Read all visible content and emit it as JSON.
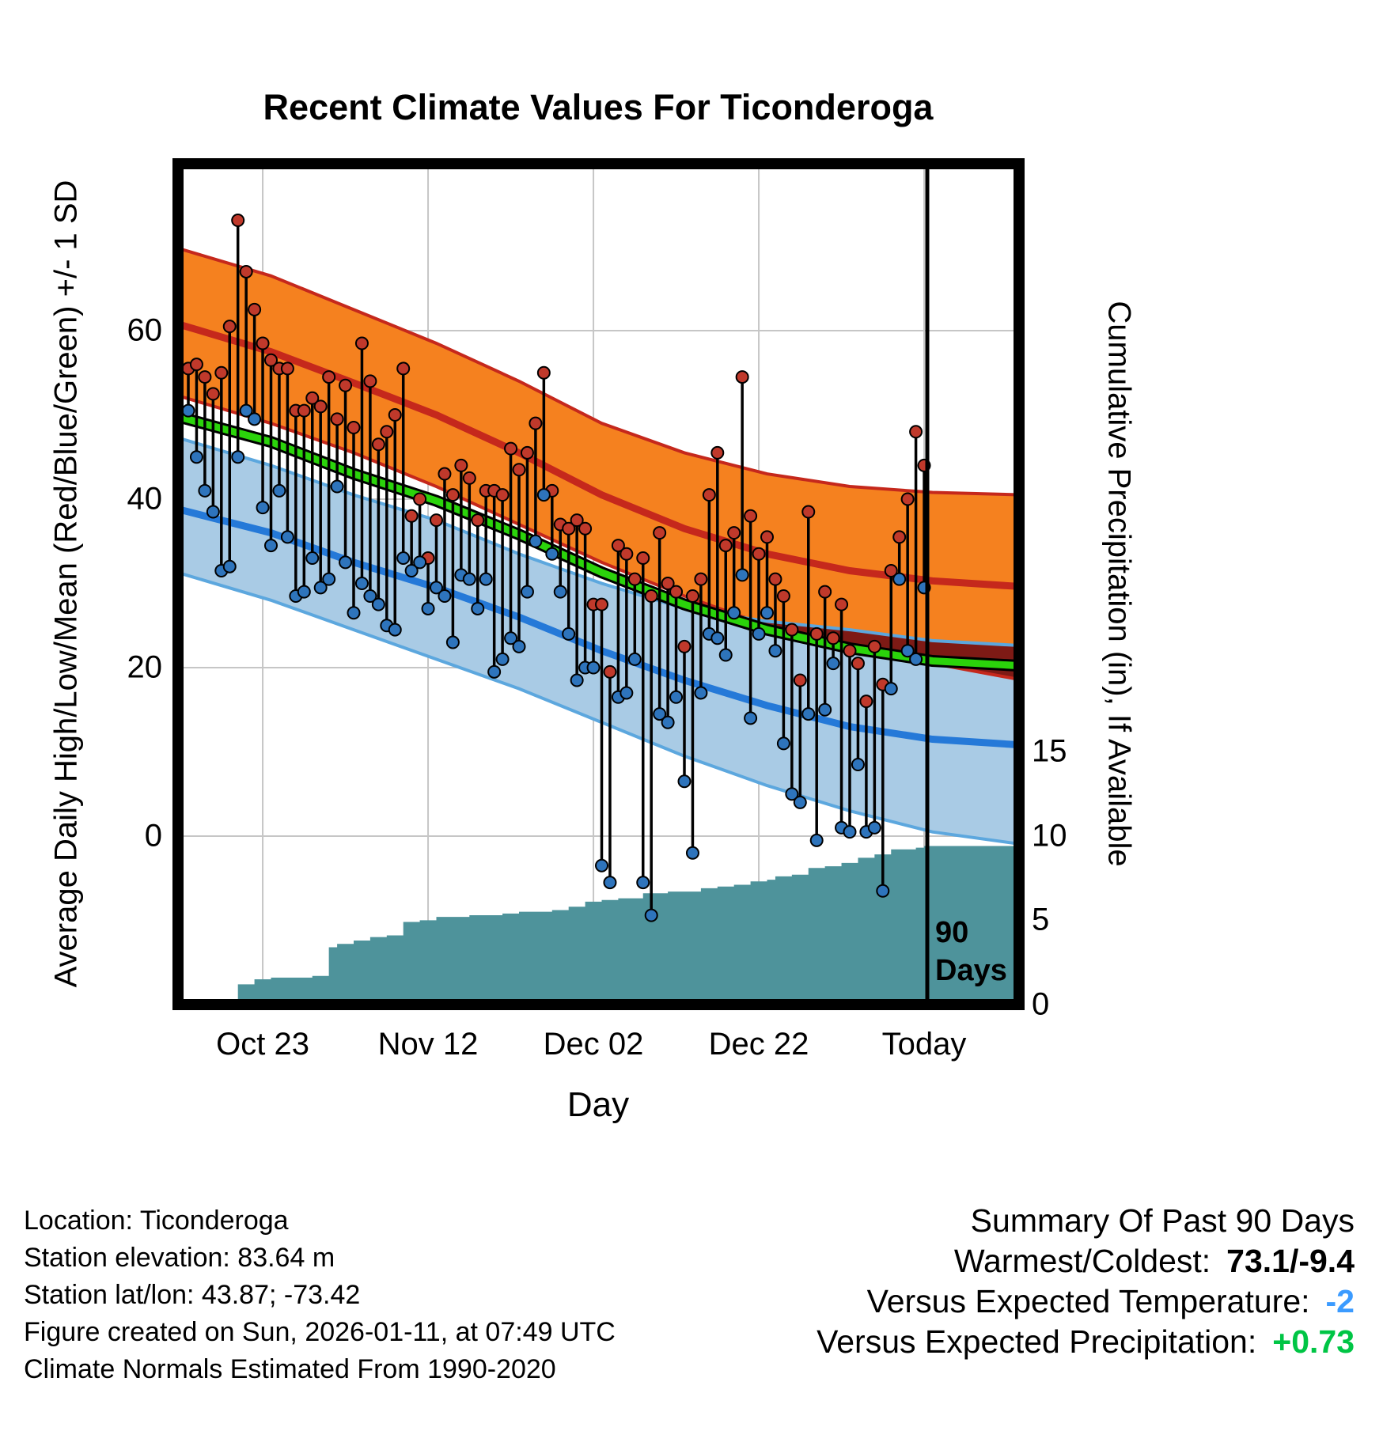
{
  "title": "Recent Climate Values For Ticonderoga",
  "left_axis": {
    "label": "Average Daily High/Low/Mean (Red/Blue/Green) +/- 1 SD",
    "ticks": [
      0,
      20,
      40,
      60
    ]
  },
  "right_axis": {
    "label": "Cumulative Precipitation (in), If Available",
    "ticks": [
      0,
      5,
      10,
      15
    ]
  },
  "x_axis": {
    "label": "Day",
    "ticks": [
      {
        "label": "Oct 23",
        "day": 9
      },
      {
        "label": "Nov 12",
        "day": 29
      },
      {
        "label": "Dec 02",
        "day": 49
      },
      {
        "label": "Dec 22",
        "day": 69
      },
      {
        "label": "Today",
        "day": 89
      }
    ]
  },
  "annotation": {
    "line1": "90",
    "line2": "Days"
  },
  "footer_left": {
    "lines": [
      "Location: Ticonderoga",
      "Station elevation: 83.64 m",
      "Station lat/lon: 43.87; -73.42",
      "Figure created on Sun, 2026-01-11, at 07:49 UTC",
      "Climate Normals Estimated From 1990-2020"
    ]
  },
  "summary": {
    "heading": "Summary Of Past 90 Days",
    "rows": [
      {
        "label": "Warmest/Coldest:",
        "value": "73.1/-9.4",
        "color": "#000000"
      },
      {
        "label": "Versus Expected Temperature:",
        "value": "-2",
        "color": "#3B9BFF"
      },
      {
        "label": "Versus Expected Precipitation:",
        "value": "+0.73",
        "color": "#00C545"
      }
    ]
  },
  "chart_data": {
    "type": "line",
    "title": "Recent Climate Values For Ticonderoga",
    "xlabel": "Day",
    "ylabel_left": "Average Daily High/Low/Mean (Red/Blue/Green) +/- 1 SD",
    "ylabel_right": "Cumulative Precipitation (in), If Available",
    "left_ylim": [
      -20,
      79.8
    ],
    "right_ylim": [
      0,
      49.8
    ],
    "grid": true,
    "colors": {
      "grid": "#c6c6c6",
      "high_band": "#F5811F",
      "high_line": "#C5281C",
      "overlap_band": "#7E1A15",
      "low_band": "#A9CBE5",
      "low_band_edge": "#5CA7DE",
      "low_line": "#2579D8",
      "mean_line": "#2BD30B",
      "precip": "#4E939B",
      "dot_high": "#C0392B",
      "dot_low": "#2E74BC"
    },
    "climatology": {
      "days": [
        -2,
        10,
        20,
        30,
        40,
        50,
        60,
        70,
        80,
        90,
        101
      ],
      "high_plus_sd": [
        70.0,
        66.5,
        62.5,
        58.5,
        54.0,
        49.0,
        45.5,
        43.0,
        41.5,
        40.8,
        40.5
      ],
      "high_mean": [
        61.0,
        57.5,
        53.8,
        50.0,
        45.5,
        40.5,
        36.5,
        33.5,
        31.5,
        30.3,
        29.6
      ],
      "high_minus_sd": [
        52.5,
        49.0,
        45.5,
        41.5,
        37.0,
        32.5,
        28.5,
        25.0,
        22.5,
        20.5,
        18.5
      ],
      "low_plus_sd": [
        47.5,
        44.0,
        40.5,
        37.5,
        33.5,
        30.0,
        27.0,
        25.5,
        24.5,
        23.2,
        22.6
      ],
      "low_mean": [
        39.0,
        36.0,
        32.5,
        29.5,
        26.0,
        22.0,
        18.5,
        15.5,
        13.0,
        11.5,
        10.8
      ],
      "low_minus_sd": [
        31.5,
        28.0,
        24.5,
        21.0,
        17.5,
        13.5,
        9.5,
        6.0,
        3.0,
        0.5,
        -1.0
      ],
      "mean": [
        50.0,
        46.8,
        43.0,
        39.8,
        35.8,
        31.3,
        27.5,
        24.5,
        22.3,
        20.8,
        20.2
      ]
    },
    "daily": {
      "highs": [
        55.5,
        56,
        54.5,
        52.5,
        55,
        60.5,
        73.1,
        67,
        62.5,
        58.5,
        56.5,
        55.5,
        55.5,
        50.5,
        50.5,
        52,
        51,
        54.5,
        49.5,
        53.5,
        48.5,
        58.5,
        54,
        46.5,
        48,
        50,
        55.5,
        38,
        40,
        33,
        37.5,
        43,
        40.5,
        44,
        42.5,
        37.5,
        41,
        41,
        40.5,
        46,
        43.5,
        45.5,
        49,
        55,
        41,
        37,
        36.5,
        37.5,
        36.5,
        27.5,
        27.5,
        19.5,
        34.5,
        33.5,
        30.5,
        33,
        28.5,
        36,
        30,
        29,
        22.5,
        28.5,
        30.5,
        40.5,
        45.5,
        34.5,
        36,
        54.5,
        38,
        33.5,
        35.5,
        30.5,
        28.5,
        24.5,
        18.5,
        38.5,
        24,
        29,
        23.5,
        27.5,
        22,
        20.5,
        16,
        22.5,
        18,
        31.5,
        35.5,
        40,
        48,
        44
      ],
      "lows": [
        50.5,
        45,
        41,
        38.5,
        31.5,
        32,
        45,
        50.5,
        49.5,
        39,
        34.5,
        41,
        35.5,
        28.5,
        29,
        33,
        29.5,
        30.5,
        41.5,
        32.5,
        26.5,
        30,
        28.5,
        27.5,
        25,
        24.5,
        33,
        31.5,
        32.5,
        27,
        29.5,
        28.5,
        23,
        31,
        30.5,
        27,
        30.5,
        19.5,
        21,
        23.5,
        22.5,
        29,
        35,
        40.5,
        33.5,
        29,
        24,
        18.5,
        20,
        20,
        -3.5,
        -5.5,
        16.5,
        17,
        21,
        -5.5,
        -9.4,
        14.5,
        13.5,
        16.5,
        6.5,
        -2,
        17,
        24,
        23.5,
        21.5,
        26.5,
        31,
        14,
        24,
        26.5,
        22,
        11,
        5,
        4,
        14.5,
        -0.5,
        15,
        20.5,
        1,
        0.5,
        8.5,
        0.5,
        1,
        -6.5,
        17.5,
        30.5,
        22,
        21,
        29.5
      ]
    },
    "precip": {
      "units": "in",
      "steps": [
        [
          5,
          0
        ],
        [
          6,
          1.2
        ],
        [
          8,
          1.5
        ],
        [
          10,
          1.6
        ],
        [
          15,
          1.7
        ],
        [
          17,
          3.4
        ],
        [
          18,
          3.6
        ],
        [
          20,
          3.8
        ],
        [
          22,
          4.0
        ],
        [
          24,
          4.1
        ],
        [
          26,
          4.9
        ],
        [
          28,
          5.0
        ],
        [
          30,
          5.2
        ],
        [
          34,
          5.3
        ],
        [
          38,
          5.4
        ],
        [
          40,
          5.5
        ],
        [
          44,
          5.6
        ],
        [
          46,
          5.8
        ],
        [
          48,
          6.1
        ],
        [
          50,
          6.2
        ],
        [
          52,
          6.3
        ],
        [
          55,
          6.6
        ],
        [
          58,
          6.7
        ],
        [
          62,
          6.9
        ],
        [
          64,
          7.0
        ],
        [
          66,
          7.1
        ],
        [
          68,
          7.3
        ],
        [
          70,
          7.4
        ],
        [
          71,
          7.6
        ],
        [
          73,
          7.7
        ],
        [
          75,
          8.1
        ],
        [
          77,
          8.2
        ],
        [
          79,
          8.4
        ],
        [
          81,
          8.7
        ],
        [
          83,
          8.9
        ],
        [
          85,
          9.2
        ],
        [
          88,
          9.3
        ],
        [
          89,
          9.4
        ],
        [
          101,
          9.4
        ]
      ]
    },
    "summary": {
      "warmest": 73.1,
      "coldest": -9.4,
      "versus_expected_temperature": -2,
      "versus_expected_precipitation": 0.73
    }
  }
}
